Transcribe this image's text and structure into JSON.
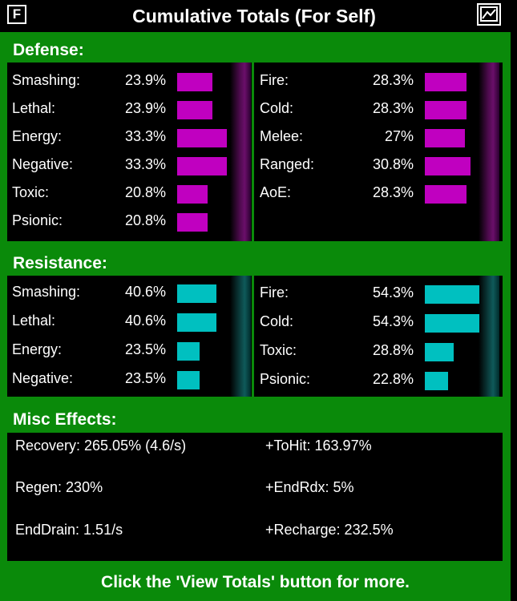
{
  "title_bar": {
    "f_button": "F",
    "title": "Cumulative Totals (For Self)",
    "graph_icon": "graph-window-icon"
  },
  "defense": {
    "heading": "Defense:",
    "left": [
      {
        "label": "Smashing:",
        "value": "23.9%",
        "level": 0.239
      },
      {
        "label": "Lethal:",
        "value": "23.9%",
        "level": 0.239
      },
      {
        "label": "Energy:",
        "value": "33.3%",
        "level": 0.333
      },
      {
        "label": "Negative:",
        "value": "33.3%",
        "level": 0.333
      },
      {
        "label": "Toxic:",
        "value": "20.8%",
        "level": 0.208
      },
      {
        "label": "Psionic:",
        "value": "20.8%",
        "level": 0.208
      }
    ],
    "right": [
      {
        "label": "Fire:",
        "value": "28.3%",
        "level": 0.283
      },
      {
        "label": "Cold:",
        "value": "28.3%",
        "level": 0.283
      },
      {
        "label": "Melee:",
        "value": "27%",
        "level": 0.27
      },
      {
        "label": "Ranged:",
        "value": "30.8%",
        "level": 0.308
      },
      {
        "label": "AoE:",
        "value": "28.3%",
        "level": 0.283
      }
    ],
    "bar_color": "#c000c0"
  },
  "resistance": {
    "heading": "Resistance:",
    "left": [
      {
        "label": "Smashing:",
        "value": "40.6%",
        "level": 0.406
      },
      {
        "label": "Lethal:",
        "value": "40.6%",
        "level": 0.406
      },
      {
        "label": "Energy:",
        "value": "23.5%",
        "level": 0.235
      },
      {
        "label": "Negative:",
        "value": "23.5%",
        "level": 0.235
      }
    ],
    "right": [
      {
        "label": "Fire:",
        "value": "54.3%",
        "level": 0.543
      },
      {
        "label": "Cold:",
        "value": "54.3%",
        "level": 0.543
      },
      {
        "label": "Toxic:",
        "value": "28.8%",
        "level": 0.288
      },
      {
        "label": "Psionic:",
        "value": "22.8%",
        "level": 0.228
      }
    ],
    "bar_color": "#00c0c0"
  },
  "misc": {
    "heading": "Misc Effects:",
    "recovery": "Recovery: 265.05% (4.6/s)",
    "tohit": "+ToHit: 163.97%",
    "regen": "Regen: 230%",
    "endrdx": "+EndRdx: 5%",
    "enddrain": "EndDrain: 1.51/s",
    "recharge": "+Recharge: 232.5%"
  },
  "footer": "Click the 'View Totals' button for more.",
  "colors": {
    "background": "#0a8a0a",
    "panel": "#000000",
    "text": "#ffffff"
  }
}
